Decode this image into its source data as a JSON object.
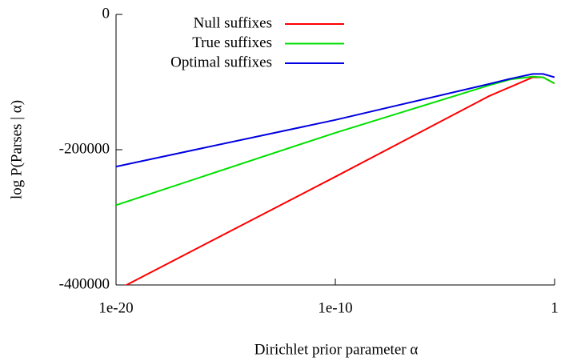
{
  "chart_data": {
    "type": "line",
    "xlabel": "Dirichlet prior parameter α",
    "ylabel": "log P(Parses | α)",
    "x": [
      1e-20,
      1e-10,
      0.001,
      0.01,
      0.1,
      0.3,
      1
    ],
    "series": [
      {
        "name": "Null suffixes",
        "color": "#ff0000",
        "values": [
          -408000,
          -240000,
          -121000,
          -107000,
          -93000,
          -93000,
          -102000
        ]
      },
      {
        "name": "True suffixes",
        "color": "#00e000",
        "values": [
          -282000,
          -175000,
          -105000,
          -96000,
          -92000,
          -93000,
          -102000
        ]
      },
      {
        "name": "Optimal suffixes",
        "color": "#0000e0",
        "values": [
          -225000,
          -156000,
          -103000,
          -95000,
          -88000,
          -88000,
          -93000
        ]
      }
    ],
    "xlim": [
      1e-20,
      1
    ],
    "xlog": true,
    "xticks": [
      {
        "value": 1e-20,
        "label": "1e-20"
      },
      {
        "value": 1e-10,
        "label": "1e-10"
      },
      1
    ],
    "ylim": [
      -400000,
      0
    ],
    "yticks": [
      0,
      -200000,
      -400000
    ],
    "legend": "upper-left",
    "grid": false
  }
}
